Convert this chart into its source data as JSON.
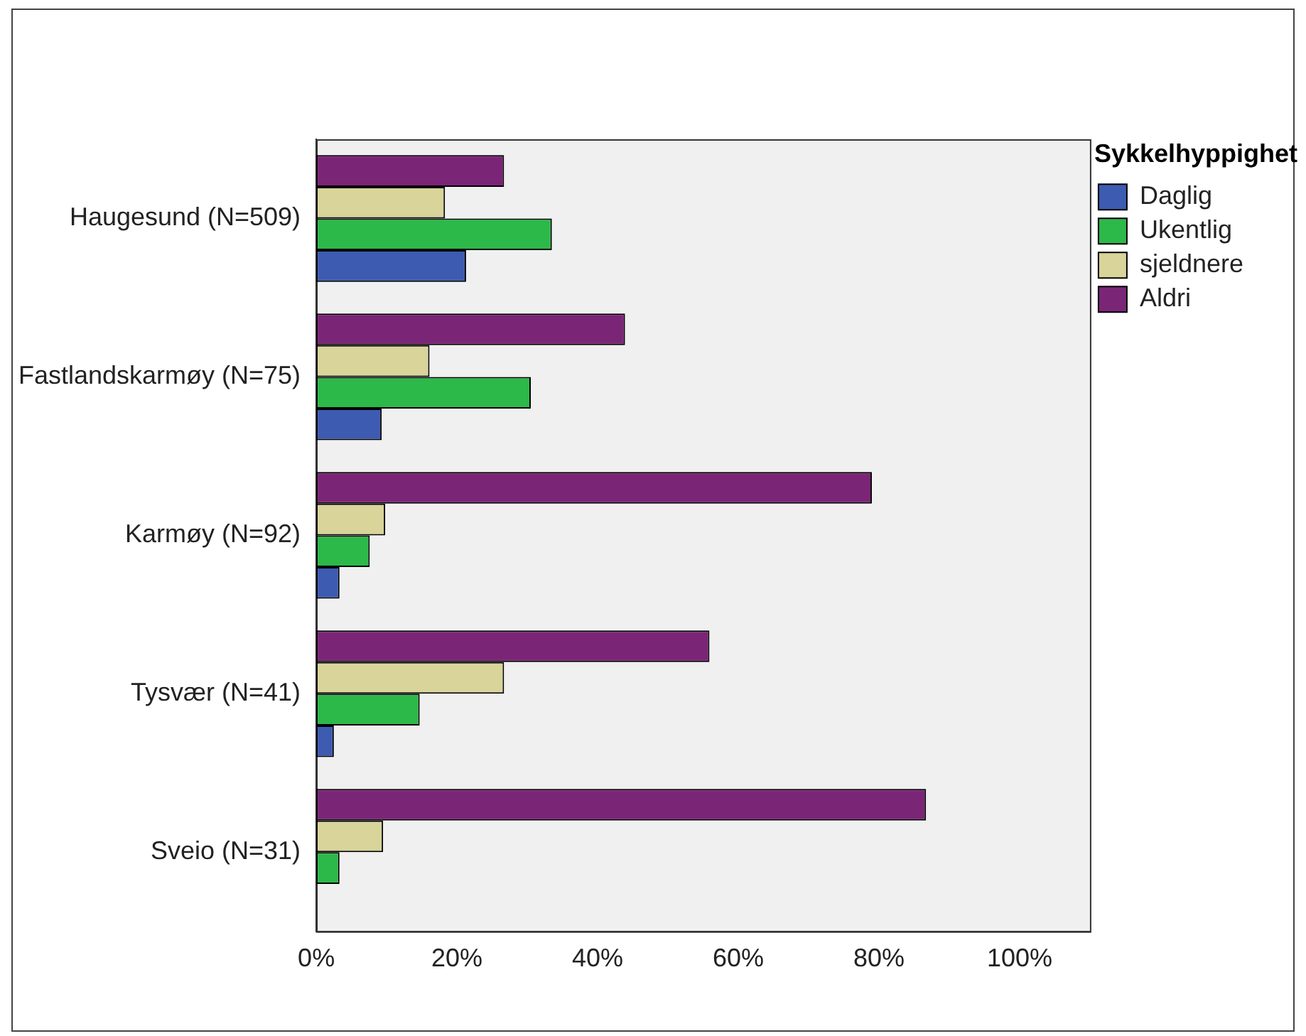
{
  "chart_data": {
    "type": "bar",
    "orientation": "horizontal",
    "legend_title": "Sykkelhyppighet",
    "categories": [
      "Haugesund (N=509)",
      "Fastlandskarmøy (N=75)",
      "Karmøy (N=92)",
      "Tysvær (N=41)",
      "Sveio (N=31)"
    ],
    "series": [
      {
        "name": "Daglig",
        "color": "#3d5bb0",
        "values": [
          21.3,
          9.3,
          3.3,
          2.5,
          0
        ]
      },
      {
        "name": "Ukentlig",
        "color": "#2db84a",
        "values": [
          33.5,
          30.5,
          7.6,
          14.7,
          3.3
        ]
      },
      {
        "name": "sjeldnere",
        "color": "#d8d49a",
        "values": [
          18.3,
          16.1,
          9.8,
          26.7,
          9.5
        ]
      },
      {
        "name": "Aldri",
        "color": "#7b2577",
        "values": [
          26.7,
          43.9,
          79,
          55.9,
          86.7
        ]
      }
    ],
    "xlim": [
      0,
      110
    ],
    "xticks": [
      {
        "value": 0,
        "label": "0%"
      },
      {
        "value": 20,
        "label": "20%"
      },
      {
        "value": 40,
        "label": "40%"
      },
      {
        "value": 60,
        "label": "60%"
      },
      {
        "value": 80,
        "label": "80%"
      },
      {
        "value": 100,
        "label": "100%"
      }
    ],
    "grid": false,
    "legend": "top right"
  }
}
